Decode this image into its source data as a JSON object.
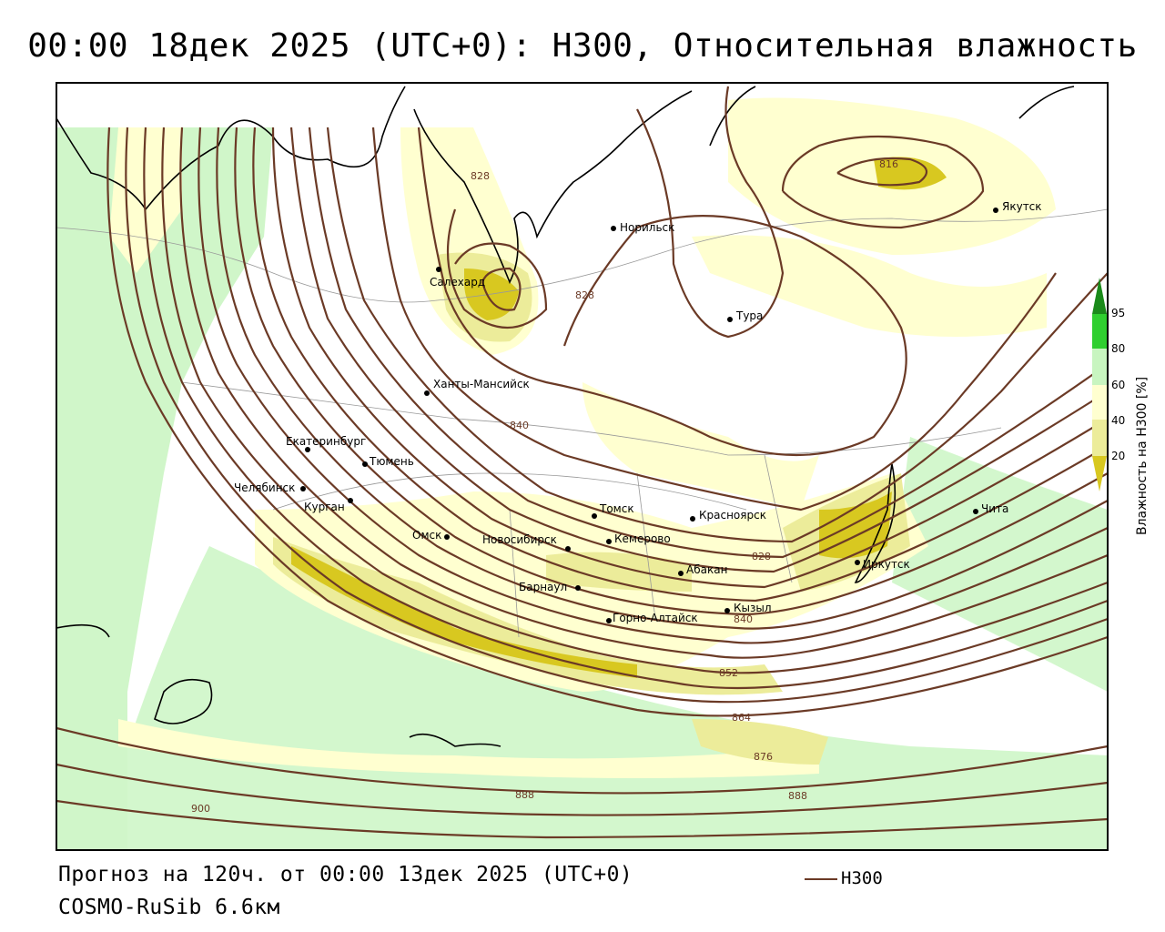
{
  "title": "00:00 18дек 2025 (UTC+0): H300, Относительная влажность",
  "footer": {
    "forecast": "Прогноз на 120ч. от 00:00 13дек 2025 (UTC+0)",
    "model": "COSMO-RuSib 6.6км",
    "legend_line_label": "H300"
  },
  "colorbar": {
    "title": "Влажность на H300 [%]",
    "ticks": [
      "95",
      "80",
      "60",
      "40",
      "20"
    ],
    "colors": {
      "lt20": "#d8c820",
      "20_40": "#ecec9a",
      "40_60": "#ffffd0",
      "60_80": "#c8f5c0",
      "80_95": "#2fcf2f",
      "gt95": "#1a8a1a"
    }
  },
  "contour_color": "#6b3a26",
  "contour_labels": [
    "828",
    "816",
    "828",
    "840",
    "828",
    "840",
    "852",
    "864",
    "876",
    "888",
    "888",
    "900"
  ],
  "cities": [
    "Норильск",
    "Якутск",
    "Салехард",
    "Тура",
    "Ханты-Мансийск",
    "Екатеринбург",
    "Тюмень",
    "Челябинск",
    "Курган",
    "Омск",
    "Новосибирск",
    "Томск",
    "Кемерово",
    "Красноярск",
    "Барнаул",
    "Абакан",
    "Горно-Алтайск",
    "Кызыл",
    "Иркутск",
    "Чита"
  ]
}
